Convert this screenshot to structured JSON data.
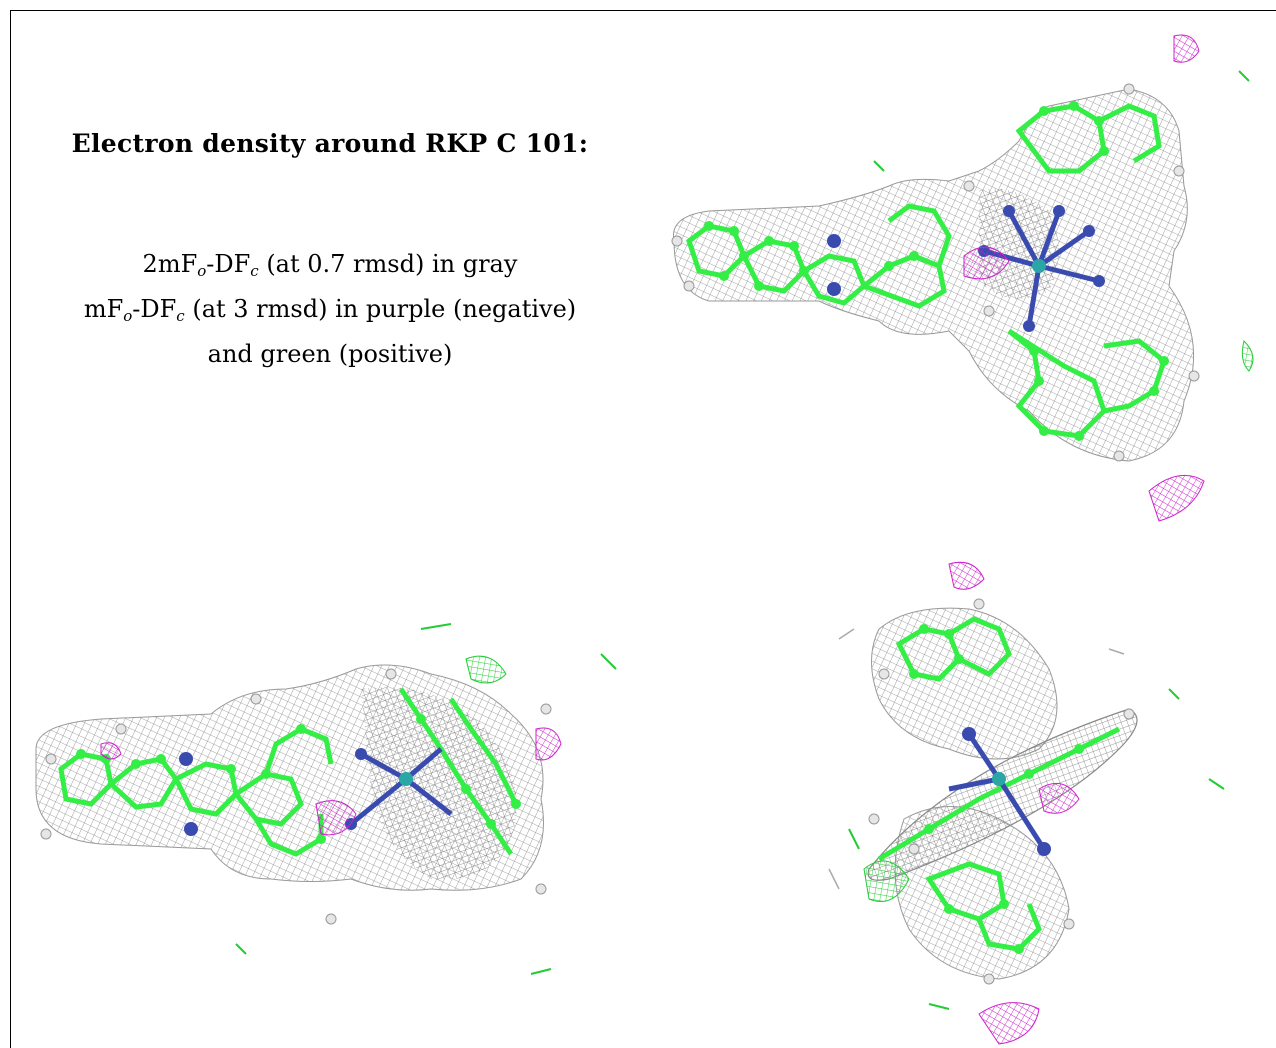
{
  "panel_text": {
    "title": "Electron density around RKP C 101:",
    "line1": {
      "main": "2mF",
      "sub1": "o",
      "mid": "-DF",
      "sub2": "c",
      "rest": " (at 0.7 rmsd) in gray"
    },
    "line2": {
      "main": "mF",
      "sub1": "o",
      "mid": "-DF",
      "sub2": "c",
      "rest": " (at 3 rmsd) in purple (negative)"
    },
    "line3": "and green (positive)"
  },
  "colors": {
    "mesh_gray": "#8a8a8a",
    "carbon_green": "#33ee44",
    "nitrogen_blue": "#3a4bb0",
    "hydrogen_white": "#e6e6e6",
    "negative_purple": "#cc22cc",
    "positive_green": "#22cc33",
    "metal_teal": "#2aa6a6"
  },
  "panels": [
    "view-top-right",
    "view-bottom-left",
    "view-bottom-right"
  ]
}
